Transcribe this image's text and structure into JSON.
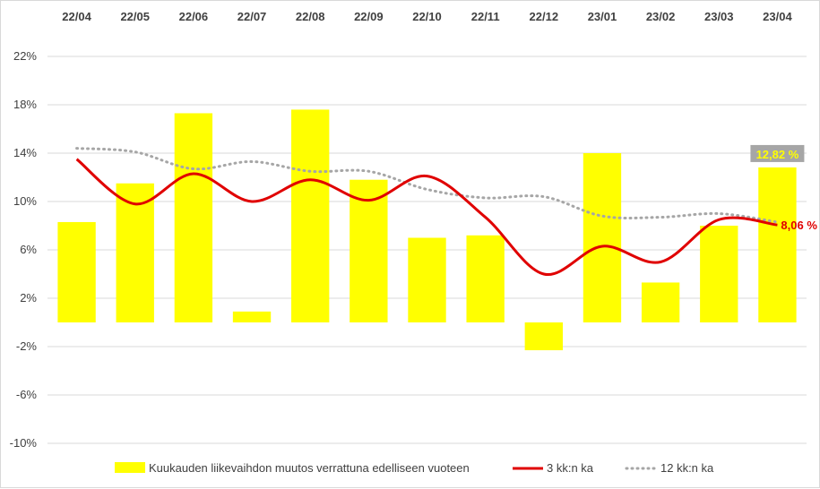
{
  "chart_data": {
    "type": "bar",
    "categories": [
      "22/04",
      "22/05",
      "22/06",
      "22/07",
      "22/08",
      "22/09",
      "22/10",
      "22/11",
      "22/12",
      "23/01",
      "23/02",
      "23/03",
      "23/04"
    ],
    "ylim": [
      -10,
      22
    ],
    "yticks": [
      -10,
      -6,
      -2,
      2,
      6,
      10,
      14,
      18,
      22
    ],
    "ytick_labels": [
      "-10%",
      "-6%",
      "-2%",
      "2%",
      "6%",
      "10%",
      "14%",
      "18%",
      "22%"
    ],
    "grid": true,
    "legend_position": "bottom",
    "series": [
      {
        "name": "Kuukauden liikevaihdon muutos verrattuna edelliseen vuoteen",
        "kind": "bar",
        "color": "#ffff00",
        "values": [
          8.3,
          11.5,
          17.3,
          0.9,
          17.6,
          11.8,
          7.0,
          7.2,
          -2.3,
          14.0,
          3.3,
          8.0,
          12.82
        ]
      },
      {
        "name": "3 kk:n ka",
        "kind": "line",
        "color": "#e00000",
        "values": [
          13.5,
          9.8,
          12.3,
          10.0,
          11.8,
          10.1,
          12.1,
          8.7,
          4.0,
          6.3,
          5.0,
          8.5,
          8.06
        ]
      },
      {
        "name": "12 kk:n ka",
        "kind": "dotted-line",
        "color": "#a6a6a6",
        "values": [
          14.4,
          14.1,
          12.7,
          13.3,
          12.5,
          12.5,
          11.0,
          10.3,
          10.4,
          8.8,
          8.7,
          9.0,
          8.3
        ]
      }
    ],
    "annotations": [
      {
        "series": 0,
        "index": 12,
        "text": "12,82 %",
        "color": "#ffff00",
        "background": "#a6a6a6"
      },
      {
        "series": 1,
        "index": 12,
        "text": "8,06 %",
        "color": "#e00000"
      }
    ]
  }
}
